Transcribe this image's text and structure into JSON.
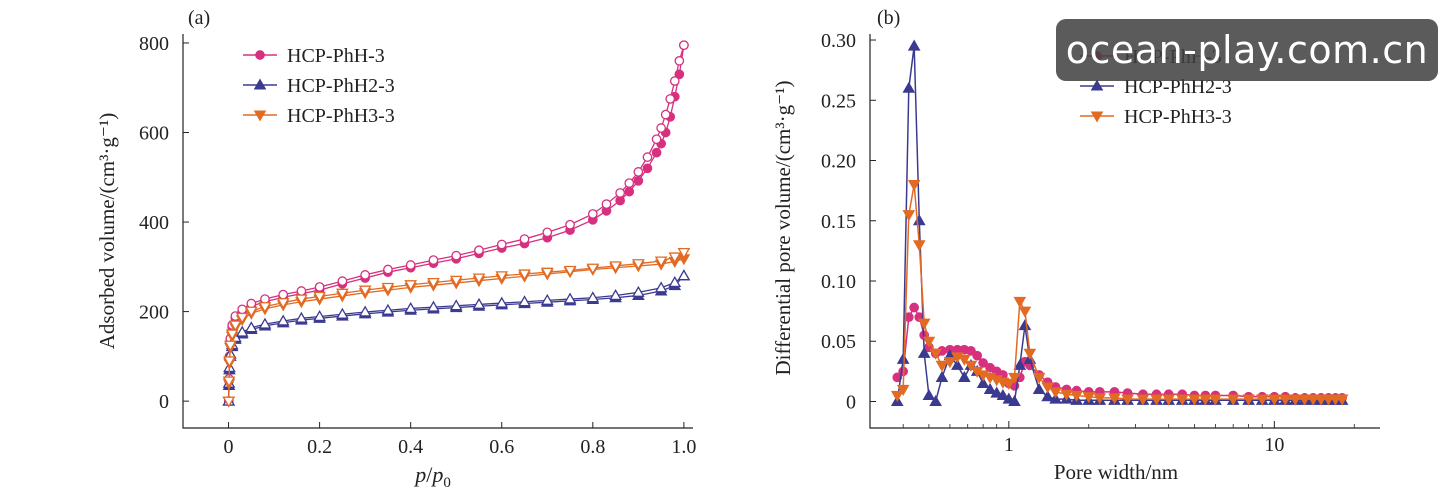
{
  "chart_data": [
    {
      "type": "scatter",
      "panel_label": "(a)",
      "xlabel_main": "p",
      "xlabel_sep": "/",
      "xlabel_sub": "0",
      "ylabel": "Adsorbed volume/(cm³·g⁻¹)",
      "xlim": [
        -0.1,
        1.02
      ],
      "ylim": [
        -60,
        820
      ],
      "xticks": [
        0,
        0.2,
        0.4,
        0.6,
        0.8,
        1.0
      ],
      "xtick_labels": [
        "0",
        "0.2",
        "0.4",
        "0.6",
        "0.8",
        "1.0"
      ],
      "yticks": [
        0,
        200,
        400,
        600,
        800
      ],
      "ytick_labels": [
        "0",
        "200",
        "400",
        "600",
        "800"
      ],
      "legend_position": "top-left",
      "series": [
        {
          "name": "HCP-PhH-3",
          "color": "#d6307f",
          "marker": "circle",
          "adsorption": {
            "x": [
              0.0005,
              0.001,
              0.002,
              0.004,
              0.008,
              0.015,
              0.03,
              0.05,
              0.08,
              0.12,
              0.16,
              0.2,
              0.25,
              0.3,
              0.35,
              0.4,
              0.45,
              0.5,
              0.55,
              0.6,
              0.65,
              0.7,
              0.75,
              0.8,
              0.83,
              0.86,
              0.88,
              0.9,
              0.92,
              0.94,
              0.95,
              0.96,
              0.97,
              0.98,
              0.99,
              1.0
            ],
            "y": [
              0,
              45,
              95,
              135,
              165,
              185,
              200,
              212,
              222,
              232,
              240,
              248,
              262,
              275,
              288,
              298,
              308,
              318,
              330,
              342,
              352,
              365,
              382,
              405,
              425,
              448,
              468,
              492,
              520,
              555,
              575,
              600,
              635,
              680,
              730,
              795
            ]
          },
          "desorption": {
            "x": [
              0.0005,
              0.001,
              0.002,
              0.004,
              0.008,
              0.015,
              0.03,
              0.05,
              0.08,
              0.12,
              0.16,
              0.2,
              0.25,
              0.3,
              0.35,
              0.4,
              0.45,
              0.5,
              0.55,
              0.6,
              0.65,
              0.7,
              0.75,
              0.8,
              0.83,
              0.86,
              0.88,
              0.9,
              0.92,
              0.94,
              0.95,
              0.96,
              0.97,
              0.98,
              0.99,
              1.0
            ],
            "y": [
              0,
              50,
              100,
              140,
              170,
              190,
              205,
              218,
              228,
              238,
              246,
              255,
              268,
              282,
              294,
              304,
              315,
              325,
              337,
              350,
              362,
              377,
              394,
              418,
              440,
              465,
              487,
              512,
              545,
              585,
              610,
              640,
              675,
              715,
              760,
              795
            ]
          }
        },
        {
          "name": "HCP-PhH2-3",
          "color": "#3b3a91",
          "marker": "triangle-up",
          "adsorption": {
            "x": [
              0.0005,
              0.001,
              0.002,
              0.004,
              0.008,
              0.015,
              0.03,
              0.05,
              0.08,
              0.12,
              0.16,
              0.2,
              0.25,
              0.3,
              0.35,
              0.4,
              0.45,
              0.5,
              0.55,
              0.6,
              0.65,
              0.7,
              0.75,
              0.8,
              0.85,
              0.9,
              0.95,
              0.98,
              1.0
            ],
            "y": [
              0,
              35,
              70,
              100,
              122,
              138,
              150,
              160,
              168,
              175,
              181,
              185,
              190,
              195,
              199,
              203,
              206,
              209,
              212,
              215,
              218,
              221,
              224,
              227,
              231,
              236,
              246,
              258,
              280
            ]
          },
          "desorption": {
            "x": [
              0.0005,
              0.001,
              0.002,
              0.004,
              0.008,
              0.015,
              0.03,
              0.05,
              0.08,
              0.12,
              0.16,
              0.2,
              0.25,
              0.3,
              0.35,
              0.4,
              0.45,
              0.5,
              0.55,
              0.6,
              0.65,
              0.7,
              0.75,
              0.8,
              0.85,
              0.9,
              0.95,
              0.98,
              1.0
            ],
            "y": [
              0,
              40,
              75,
              105,
              126,
              142,
              154,
              164,
              172,
              179,
              185,
              189,
              194,
              199,
              203,
              207,
              210,
              213,
              216,
              219,
              222,
              225,
              228,
              231,
              236,
              243,
              253,
              265,
              280
            ]
          }
        },
        {
          "name": "HCP-PhH3-3",
          "color": "#e26a22",
          "marker": "triangle-down",
          "adsorption": {
            "x": [
              0.0005,
              0.001,
              0.002,
              0.004,
              0.008,
              0.015,
              0.03,
              0.05,
              0.08,
              0.12,
              0.16,
              0.2,
              0.25,
              0.3,
              0.35,
              0.4,
              0.45,
              0.5,
              0.55,
              0.6,
              0.65,
              0.7,
              0.75,
              0.8,
              0.85,
              0.9,
              0.95,
              0.98,
              1.0
            ],
            "y": [
              0,
              40,
              85,
              120,
              145,
              165,
              182,
              196,
              206,
              215,
              222,
              228,
              235,
              242,
              248,
              254,
              259,
              264,
              269,
              274,
              279,
              284,
              289,
              294,
              298,
              302,
              306,
              312,
              318
            ]
          },
          "desorption": {
            "x": [
              0.0005,
              0.001,
              0.002,
              0.004,
              0.008,
              0.015,
              0.03,
              0.05,
              0.08,
              0.12,
              0.16,
              0.2,
              0.25,
              0.3,
              0.35,
              0.4,
              0.45,
              0.5,
              0.55,
              0.6,
              0.65,
              0.7,
              0.75,
              0.8,
              0.85,
              0.9,
              0.95,
              0.98,
              1.0
            ],
            "y": [
              0,
              45,
              90,
              125,
              150,
              170,
              187,
              201,
              211,
              220,
              228,
              234,
              241,
              248,
              254,
              260,
              265,
              270,
              275,
              280,
              284,
              288,
              292,
              297,
              302,
              307,
              313,
              322,
              332
            ]
          }
        }
      ]
    },
    {
      "type": "line",
      "panel_label": "(b)",
      "xscale": "log",
      "xlabel": "Pore width/nm",
      "ylabel": "Differential pore volume/(cm³·g⁻¹)",
      "xlim": [
        0.3,
        25
      ],
      "ylim": [
        -0.022,
        0.305
      ],
      "xticks": [
        1,
        10
      ],
      "xtick_labels": [
        "1",
        "10"
      ],
      "yticks": [
        0,
        0.05,
        0.1,
        0.15,
        0.2,
        0.25,
        0.3
      ],
      "ytick_labels": [
        "0",
        "0.05",
        "0.10",
        "0.15",
        "0.20",
        "0.25",
        "0.30"
      ],
      "legend_position": "top-right",
      "series": [
        {
          "name": "HCP-PhH-3",
          "color": "#d6307f",
          "marker": "circle",
          "x": [
            0.38,
            0.4,
            0.42,
            0.44,
            0.46,
            0.48,
            0.5,
            0.53,
            0.56,
            0.6,
            0.64,
            0.68,
            0.72,
            0.76,
            0.8,
            0.85,
            0.9,
            0.95,
            1.0,
            1.05,
            1.1,
            1.15,
            1.2,
            1.3,
            1.4,
            1.5,
            1.65,
            1.8,
            2.0,
            2.2,
            2.5,
            2.8,
            3.2,
            3.6,
            4.0,
            4.5,
            5.0,
            5.5,
            6.0,
            7.0,
            8.0,
            9.0,
            10,
            11,
            12,
            13,
            14,
            15,
            16,
            17,
            18
          ],
          "y": [
            0.02,
            0.025,
            0.07,
            0.078,
            0.07,
            0.055,
            0.045,
            0.04,
            0.042,
            0.043,
            0.043,
            0.043,
            0.042,
            0.038,
            0.032,
            0.028,
            0.025,
            0.022,
            0.015,
            0.013,
            0.02,
            0.033,
            0.03,
            0.022,
            0.016,
            0.012,
            0.01,
            0.009,
            0.008,
            0.008,
            0.008,
            0.007,
            0.006,
            0.006,
            0.006,
            0.006,
            0.005,
            0.005,
            0.005,
            0.005,
            0.004,
            0.004,
            0.004,
            0.004,
            0.003,
            0.003,
            0.003,
            0.003,
            0.003,
            0.003,
            0.003
          ]
        },
        {
          "name": "HCP-PhH2-3",
          "color": "#3b3a91",
          "marker": "triangle-up",
          "x": [
            0.38,
            0.4,
            0.42,
            0.44,
            0.46,
            0.48,
            0.5,
            0.53,
            0.56,
            0.6,
            0.64,
            0.68,
            0.72,
            0.76,
            0.8,
            0.85,
            0.9,
            0.95,
            1.0,
            1.05,
            1.1,
            1.15,
            1.2,
            1.3,
            1.4,
            1.5,
            1.65,
            1.8,
            2.0,
            2.2,
            2.5,
            2.8,
            3.2,
            3.6,
            4.0,
            4.5,
            5.0,
            5.5,
            6.0,
            7.0,
            8.0,
            9.0,
            10,
            11,
            12,
            13,
            14,
            15,
            16,
            17,
            18
          ],
          "y": [
            0.0,
            0.035,
            0.26,
            0.295,
            0.15,
            0.04,
            0.005,
            0.0,
            0.02,
            0.038,
            0.03,
            0.02,
            0.03,
            0.025,
            0.015,
            0.01,
            0.007,
            0.005,
            0.002,
            0.0,
            0.03,
            0.063,
            0.035,
            0.01,
            0.004,
            0.002,
            0.002,
            0.001,
            0.001,
            0.001,
            0.001,
            0.001,
            0.001,
            0.001,
            0.001,
            0.001,
            0.001,
            0.001,
            0.001,
            0.001,
            0.001,
            0.001,
            0.001,
            0.001,
            0.001,
            0.001,
            0.001,
            0.001,
            0.001,
            0.001,
            0.001
          ]
        },
        {
          "name": "HCP-PhH3-3",
          "color": "#e26a22",
          "marker": "triangle-down",
          "x": [
            0.38,
            0.4,
            0.42,
            0.44,
            0.46,
            0.48,
            0.5,
            0.53,
            0.56,
            0.6,
            0.64,
            0.68,
            0.72,
            0.76,
            0.8,
            0.85,
            0.9,
            0.95,
            1.0,
            1.05,
            1.1,
            1.15,
            1.2,
            1.3,
            1.4,
            1.5,
            1.65,
            1.8,
            2.0,
            2.2,
            2.5,
            2.8,
            3.2,
            3.6,
            4.0,
            4.5,
            5.0,
            5.5,
            6.0,
            7.0,
            8.0,
            9.0,
            10,
            11,
            12,
            13,
            14,
            15,
            16,
            17,
            18
          ],
          "y": [
            0.005,
            0.01,
            0.155,
            0.18,
            0.13,
            0.065,
            0.05,
            0.04,
            0.03,
            0.033,
            0.037,
            0.035,
            0.03,
            0.025,
            0.022,
            0.02,
            0.018,
            0.016,
            0.015,
            0.02,
            0.083,
            0.075,
            0.04,
            0.02,
            0.012,
            0.008,
            0.006,
            0.005,
            0.004,
            0.003,
            0.003,
            0.002,
            0.002,
            0.002,
            0.002,
            0.002,
            0.002,
            0.002,
            0.002,
            0.002,
            0.002,
            0.002,
            0.002,
            0.002,
            0.002,
            0.002,
            0.002,
            0.002,
            0.002,
            0.002,
            0.002
          ]
        }
      ]
    }
  ],
  "watermark": {
    "text": "ocean-play.com.cn"
  }
}
